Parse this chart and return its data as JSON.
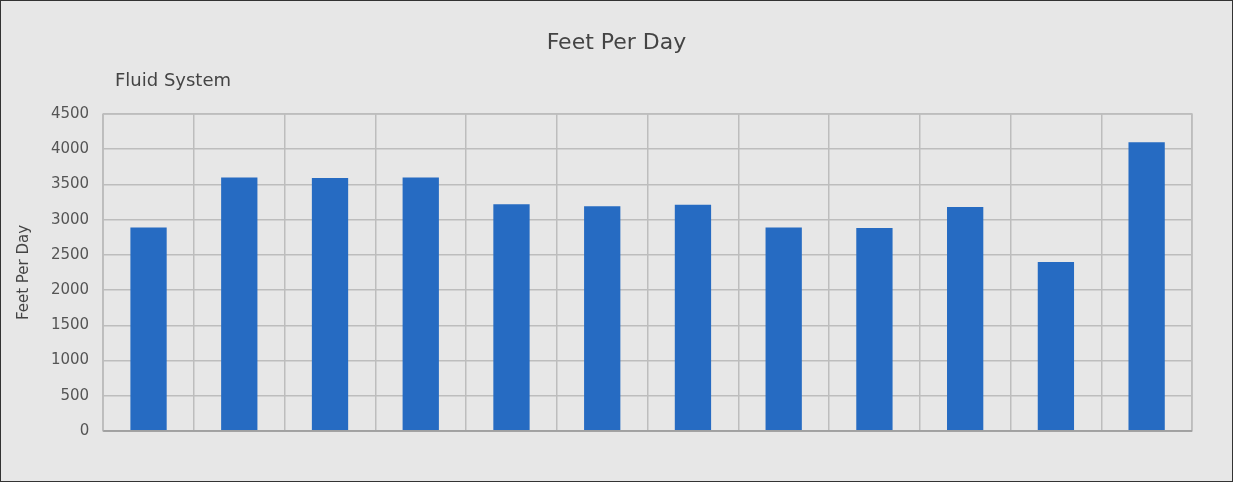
{
  "chart_data": {
    "type": "bar",
    "title": "Feet Per Day",
    "subtitle": "Fluid System",
    "ylabel": "Feet Per Day",
    "categories": [
      null,
      null,
      null,
      null,
      null,
      null,
      null,
      null,
      null,
      null,
      null,
      null
    ],
    "values": [
      2890,
      3600,
      3590,
      3600,
      3220,
      3190,
      3210,
      2890,
      2880,
      3180,
      2400,
      4100
    ],
    "color": "#266bc2",
    "ylim": [
      0,
      4500
    ],
    "yticks": [
      0,
      500,
      1000,
      1500,
      2000,
      2500,
      3000,
      3500,
      4000,
      4500
    ],
    "grid": true,
    "tick_labels": "y"
  }
}
